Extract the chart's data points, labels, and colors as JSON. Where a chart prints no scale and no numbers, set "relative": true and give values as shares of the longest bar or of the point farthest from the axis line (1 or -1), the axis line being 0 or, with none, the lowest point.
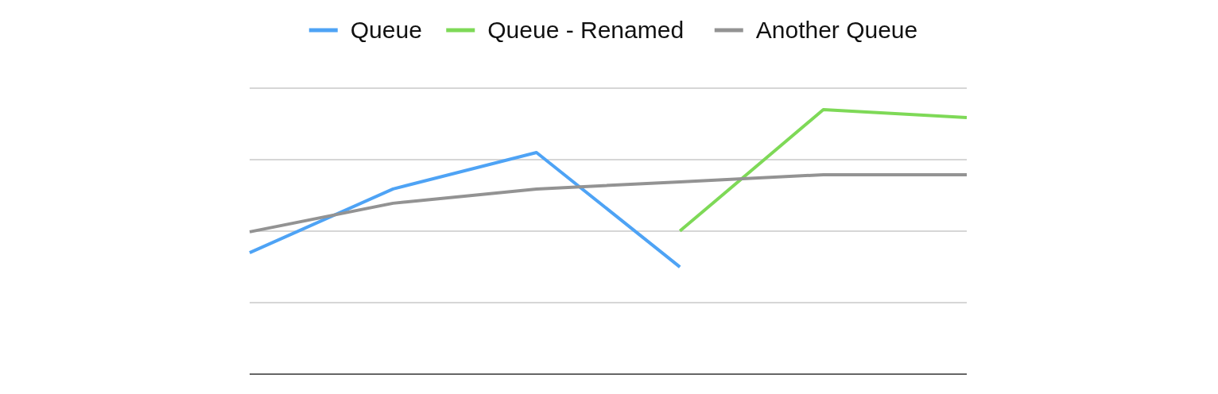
{
  "chart_data": {
    "type": "line",
    "relative": true,
    "categories": [
      null,
      null,
      null,
      null,
      null,
      null
    ],
    "series": [
      {
        "name": "Queue",
        "color": "#4ea3f5",
        "values": [
          0.459,
          0.7,
          0.838,
          0.405,
          null,
          null
        ]
      },
      {
        "name": "Queue - Renamed",
        "color": "#7ed957",
        "values": [
          null,
          null,
          null,
          0.541,
          1,
          0.97
        ]
      },
      {
        "name": "Another Queue",
        "color": "#939393",
        "values": [
          0.538,
          0.646,
          0.7,
          0.727,
          0.754,
          0.754
        ]
      }
    ],
    "grid": "y",
    "legend": "top",
    "marker": "none",
    "line_style": "solid"
  }
}
